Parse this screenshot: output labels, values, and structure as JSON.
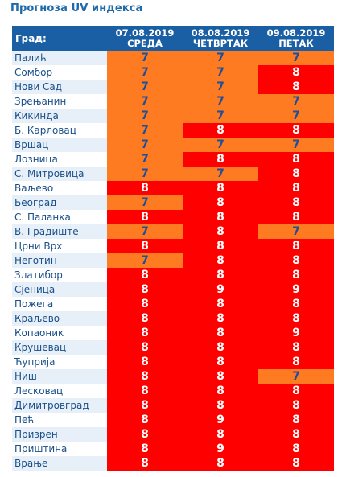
{
  "page": {
    "title": "Прогноза UV индекса"
  },
  "table": {
    "city_header": "Град:",
    "days": [
      {
        "date": "07.08.2019",
        "weekday": "СРЕДА"
      },
      {
        "date": "08.08.2019",
        "weekday": "ЧЕТВРТАК"
      },
      {
        "date": "09.08.2019",
        "weekday": "ПЕТАК"
      }
    ],
    "rows": [
      {
        "city": "Палић",
        "v": [
          "7",
          "7",
          "7"
        ]
      },
      {
        "city": "Сомбор",
        "v": [
          "7",
          "7",
          "8"
        ]
      },
      {
        "city": "Нови Сад",
        "v": [
          "7",
          "7",
          "8"
        ]
      },
      {
        "city": "Зрењанин",
        "v": [
          "7",
          "7",
          "7"
        ]
      },
      {
        "city": "Кикинда",
        "v": [
          "7",
          "7",
          "7"
        ]
      },
      {
        "city": "Б. Карловац",
        "v": [
          "7",
          "8",
          "8"
        ]
      },
      {
        "city": "Вршац",
        "v": [
          "7",
          "7",
          "7"
        ]
      },
      {
        "city": "Лозница",
        "v": [
          "7",
          "8",
          "8"
        ]
      },
      {
        "city": "С. Митровица",
        "v": [
          "7",
          "7",
          "8"
        ]
      },
      {
        "city": "Ваљево",
        "v": [
          "8",
          "8",
          "8"
        ]
      },
      {
        "city": "Београд",
        "v": [
          "7",
          "8",
          "8"
        ]
      },
      {
        "city": "С. Паланка",
        "v": [
          "8",
          "8",
          "8"
        ]
      },
      {
        "city": "В. Градиште",
        "v": [
          "7",
          "8",
          "7"
        ]
      },
      {
        "city": "Црни Врх",
        "v": [
          "8",
          "8",
          "8"
        ]
      },
      {
        "city": "Неготин",
        "v": [
          "7",
          "8",
          "8"
        ]
      },
      {
        "city": "Златибор",
        "v": [
          "8",
          "8",
          "8"
        ]
      },
      {
        "city": "Сјеница",
        "v": [
          "8",
          "9",
          "9"
        ]
      },
      {
        "city": "Пожега",
        "v": [
          "8",
          "8",
          "8"
        ]
      },
      {
        "city": "Краљево",
        "v": [
          "8",
          "8",
          "8"
        ]
      },
      {
        "city": "Копаоник",
        "v": [
          "8",
          "8",
          "9"
        ]
      },
      {
        "city": "Крушевац",
        "v": [
          "8",
          "8",
          "8"
        ]
      },
      {
        "city": "Ћуприја",
        "v": [
          "8",
          "8",
          "8"
        ]
      },
      {
        "city": "Ниш",
        "v": [
          "8",
          "8",
          "7"
        ]
      },
      {
        "city": "Лесковац",
        "v": [
          "8",
          "8",
          "8"
        ]
      },
      {
        "city": "Димитровград",
        "v": [
          "8",
          "8",
          "8"
        ]
      },
      {
        "city": "Пећ",
        "v": [
          "8",
          "9",
          "8"
        ]
      },
      {
        "city": "Призрен",
        "v": [
          "8",
          "8",
          "8"
        ]
      },
      {
        "city": "Приштина",
        "v": [
          "8",
          "9",
          "8"
        ]
      },
      {
        "city": "Врање",
        "v": [
          "8",
          "8",
          "8"
        ]
      }
    ]
  },
  "colors": {
    "header_bg": "#1a5fa4",
    "title": "#1f6aa8",
    "level_7_bg": "#ff7b22",
    "level_8_bg": "#ff0000"
  }
}
